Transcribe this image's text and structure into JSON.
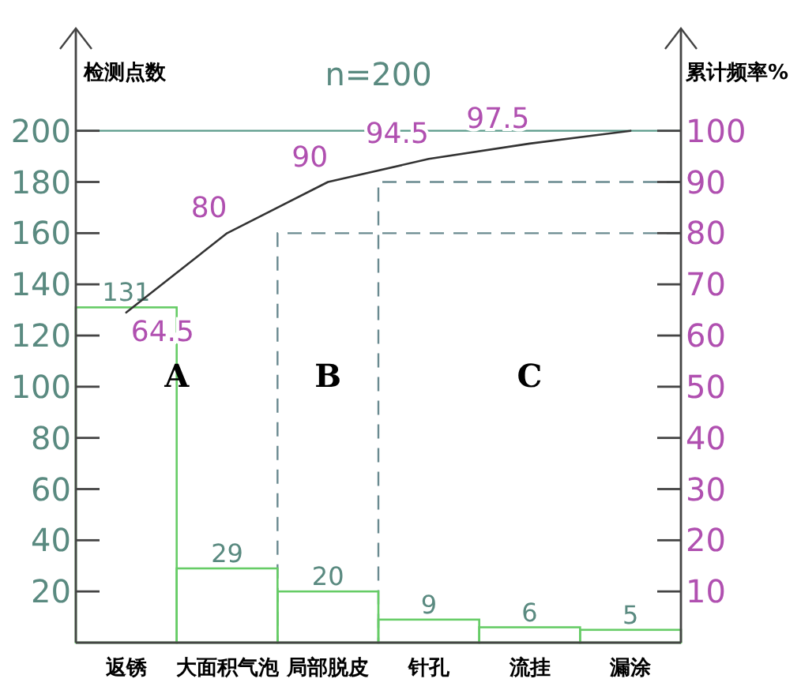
{
  "chart_data": {
    "type": "bar",
    "annotations": [
      "n=200",
      "A",
      "B",
      "C"
    ],
    "ylabel": "检测点数",
    "y2label": "累计频率%",
    "categories": [
      "返锈",
      "大面积气泡",
      "局部脱皮",
      "针孔",
      "流挂",
      "漏涂"
    ],
    "series": [
      {
        "color": "#66cc66",
        "values": [
          131,
          29,
          20,
          9,
          6,
          5
        ],
        "value_labels": [
          "131",
          "29",
          "20",
          "9",
          "6",
          "5"
        ]
      },
      {
        "type": "line",
        "axis": "y2",
        "color": "#333333",
        "values": [
          64.5,
          80,
          90,
          94.5,
          97.5,
          100
        ],
        "value_labels": [
          "64.5",
          "80",
          "90",
          "94.5",
          "97.5",
          null
        ]
      }
    ],
    "ylim": [
      0,
      240
    ],
    "yticks": [
      20,
      40,
      60,
      80,
      100,
      120,
      140,
      160,
      180,
      200
    ],
    "y2lim": [
      0,
      120
    ],
    "y2ticks": [
      10,
      20,
      30,
      40,
      50,
      60,
      70,
      80,
      90,
      100
    ],
    "ref_lines": [
      {
        "axis": "y",
        "value": 200,
        "color": "#5a9a8a",
        "line_style": "solid"
      },
      {
        "axis": "y2",
        "value": 80,
        "color": "#6a8a90",
        "line_style": "dashed"
      },
      {
        "axis": "y2",
        "value": 90,
        "color": "#6a8a90",
        "line_style": "dashed"
      }
    ],
    "grid": false
  }
}
